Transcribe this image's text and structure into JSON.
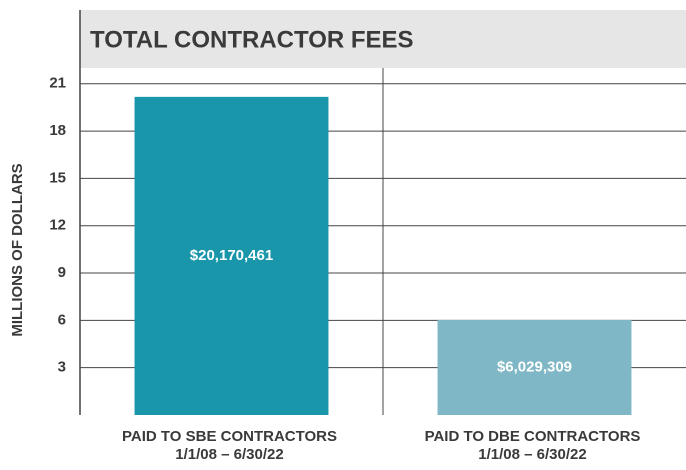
{
  "chart_data": {
    "type": "bar",
    "title": "TOTAL CONTRACTOR FEES",
    "y_label": "MILLIONS OF DOLLARS",
    "categories": [
      "PAID TO SBE CONTRACTORS\n1/1/08 – 6/30/22",
      "PAID TO DBE CONTRACTORS\n1/1/08 – 6/30/22"
    ],
    "values": [
      20.170461,
      6.029309
    ],
    "value_labels": [
      "$20,170,461",
      "$6,029,309"
    ],
    "colors": [
      "#1a96ab",
      "#7fb7c6"
    ],
    "ylim": [
      0,
      22
    ],
    "yticks": [
      3,
      6,
      9,
      12,
      15,
      18,
      21
    ],
    "grid": true
  }
}
